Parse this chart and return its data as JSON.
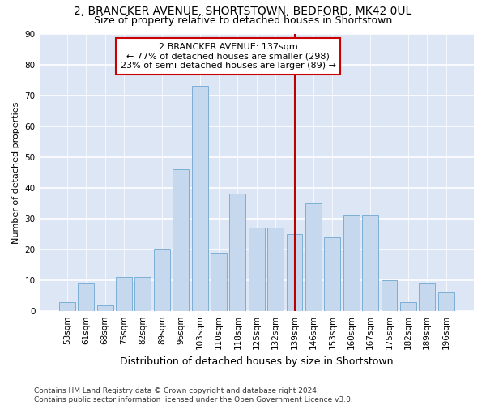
{
  "title": "2, BRANCKER AVENUE, SHORTSTOWN, BEDFORD, MK42 0UL",
  "subtitle": "Size of property relative to detached houses in Shortstown",
  "xlabel": "Distribution of detached houses by size in Shortstown",
  "ylabel": "Number of detached properties",
  "categories": [
    "53sqm",
    "61sqm",
    "68sqm",
    "75sqm",
    "82sqm",
    "89sqm",
    "96sqm",
    "103sqm",
    "110sqm",
    "118sqm",
    "125sqm",
    "132sqm",
    "139sqm",
    "146sqm",
    "153sqm",
    "160sqm",
    "167sqm",
    "175sqm",
    "182sqm",
    "189sqm",
    "196sqm"
  ],
  "values": [
    3,
    9,
    2,
    11,
    11,
    20,
    46,
    73,
    19,
    38,
    27,
    27,
    25,
    35,
    24,
    31,
    31,
    10,
    3,
    9,
    6
  ],
  "bar_color": "#c5d8ed",
  "bar_edge_color": "#7bafd4",
  "background_color": "#dce6f5",
  "grid_color": "#ffffff",
  "vline_color": "#bb0000",
  "vline_index": 12,
  "annotation_text": "2 BRANCKER AVENUE: 137sqm\n← 77% of detached houses are smaller (298)\n23% of semi-detached houses are larger (89) →",
  "annotation_box_color": "#cc0000",
  "ylim": [
    0,
    90
  ],
  "yticks": [
    0,
    10,
    20,
    30,
    40,
    50,
    60,
    70,
    80,
    90
  ],
  "footnote": "Contains HM Land Registry data © Crown copyright and database right 2024.\nContains public sector information licensed under the Open Government Licence v3.0.",
  "title_fontsize": 10,
  "subtitle_fontsize": 9,
  "xlabel_fontsize": 9,
  "ylabel_fontsize": 8,
  "tick_fontsize": 7.5,
  "annotation_fontsize": 8,
  "footnote_fontsize": 6.5
}
